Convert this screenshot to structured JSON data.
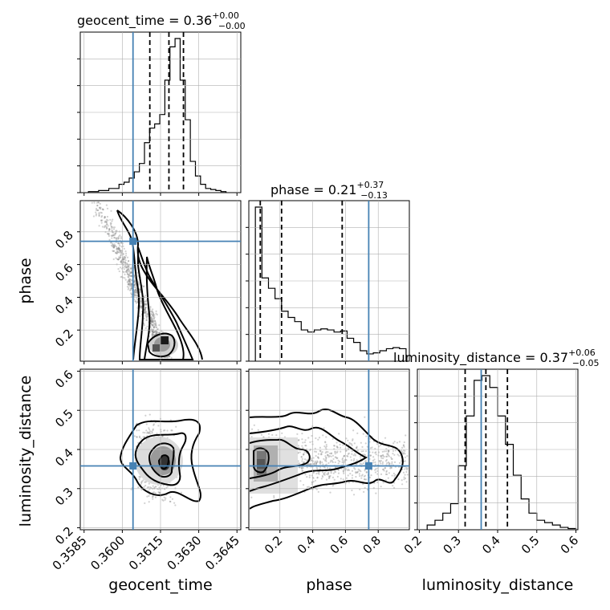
{
  "chart_data": {
    "type": "corner",
    "parameters": [
      "geocent_time",
      "phase",
      "luminosity_distance"
    ],
    "ranges": {
      "geocent_time": [
        0.35835,
        0.36465
      ],
      "phase": [
        0.01,
        0.99
      ],
      "luminosity_distance": [
        0.195,
        0.605
      ]
    },
    "truths": {
      "geocent_time": 0.36042,
      "phase": 0.742,
      "luminosity_distance": 0.358
    },
    "colors": {
      "truth": "#4682b4",
      "hist": "#000000",
      "contour": "#000000",
      "grid": "#b0b0b0",
      "points": "#7a7a7a"
    },
    "titles": [
      {
        "param": "geocent_time",
        "label": "geocent_time = 0.36",
        "plus": "+0.00",
        "minus": "−0.00"
      },
      {
        "param": "phase",
        "label": "phase = 0.21",
        "plus": "+0.37",
        "minus": "−0.13"
      },
      {
        "param": "luminosity_distance",
        "label": "luminosity_distance = 0.37",
        "plus": "+0.06",
        "minus": "−0.05"
      }
    ],
    "axis_labels": {
      "x": [
        "geocent_time",
        "phase",
        "luminosity_distance"
      ],
      "y": [
        "phase",
        "luminosity_distance"
      ]
    },
    "ticks": {
      "geocent_time": {
        "values": [
          0.3585,
          0.36,
          0.3615,
          0.363,
          0.3645
        ],
        "labels": [
          "0.3585",
          "0.3600",
          "0.3615",
          "0.3630",
          "0.3645"
        ]
      },
      "phase": {
        "values": [
          0.2,
          0.4,
          0.6,
          0.8
        ],
        "labels": [
          "0.2",
          "0.4",
          "0.6",
          "0.8"
        ]
      },
      "luminosity_distance": {
        "values": [
          0.2,
          0.3,
          0.4,
          0.5,
          0.6
        ],
        "labels": [
          "0.2",
          "0.3",
          "0.4",
          "0.5",
          "0.6"
        ]
      }
    },
    "quantiles": {
      "geocent_time": [
        0.36108,
        0.36183,
        0.3624
      ],
      "phase": [
        0.08,
        0.21,
        0.58
      ],
      "luminosity_distance": [
        0.317,
        0.37,
        0.425
      ]
    },
    "histograms": {
      "geocent_time": {
        "edges": [
          0.35867,
          0.35887,
          0.35907,
          0.35927,
          0.35947,
          0.35967,
          0.35987,
          0.36007,
          0.36027,
          0.36047,
          0.36067,
          0.36087,
          0.36107,
          0.36127,
          0.36147,
          0.36167,
          0.36187,
          0.36207,
          0.36227,
          0.36247,
          0.36267,
          0.36287,
          0.36307,
          0.36327,
          0.36347,
          0.36367,
          0.36387,
          0.36407
        ],
        "counts": [
          1,
          1,
          2,
          2,
          4,
          4,
          8,
          10,
          14,
          20,
          28,
          48,
          62,
          66,
          75,
          108,
          140,
          148,
          108,
          70,
          30,
          16,
          8,
          4,
          3,
          2,
          1
        ]
      },
      "phase": {
        "edges": [
          0.05,
          0.09,
          0.13,
          0.17,
          0.21,
          0.25,
          0.29,
          0.33,
          0.37,
          0.41,
          0.45,
          0.49,
          0.53,
          0.57,
          0.61,
          0.65,
          0.69,
          0.73,
          0.77,
          0.81,
          0.85,
          0.89,
          0.93,
          0.97
        ],
        "counts": [
          148,
          80,
          70,
          60,
          48,
          42,
          38,
          30,
          28,
          30,
          31,
          30,
          28,
          29,
          22,
          18,
          10,
          7,
          8,
          10,
          12,
          13,
          12
        ]
      },
      "luminosity_distance": {
        "edges": [
          0.22,
          0.24,
          0.26,
          0.28,
          0.3,
          0.32,
          0.34,
          0.36,
          0.38,
          0.4,
          0.42,
          0.44,
          0.46,
          0.48,
          0.5,
          0.52,
          0.54,
          0.56,
          0.58,
          0.6
        ],
        "counts": [
          4,
          8,
          14,
          22,
          54,
          96,
          126,
          130,
          120,
          96,
          72,
          46,
          26,
          14,
          8,
          6,
          4,
          2,
          1
        ]
      }
    }
  }
}
